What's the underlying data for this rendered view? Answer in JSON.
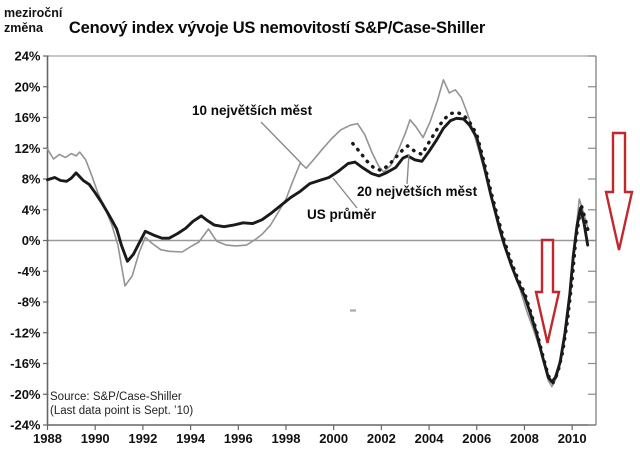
{
  "corner_label": {
    "line1": "meziroční",
    "line2": "změna"
  },
  "source": {
    "line1": "Source: S&P/Case-Shiller",
    "line2": "(Last data point is Sept. ’10)"
  },
  "colors": {
    "series_gray": "#949494",
    "series_black": "#1a1a1a",
    "series_dotted": "#1a1a1a",
    "arrow_red": "#c1272d",
    "axis_dark": "#666666",
    "axis_light": "#a3a3a3",
    "zero_line": "#9a9a9a",
    "leader_gray": "#8a8a8a"
  },
  "chart_data": {
    "type": "line",
    "title": "Cenový index vývoje US nemovitostí S&P/Case-Shiller",
    "ylabel": "meziroční změna",
    "x_axis": {
      "range": [
        1988,
        2011
      ],
      "tick_values": [
        1988,
        1990,
        1992,
        1994,
        1996,
        1998,
        2000,
        2002,
        2004,
        2006,
        2008,
        2010
      ]
    },
    "y_axis": {
      "range": [
        -24,
        24
      ],
      "tick_values": [
        24,
        20,
        16,
        12,
        8,
        4,
        0,
        -4,
        -8,
        -12,
        -16,
        -20,
        -24
      ],
      "tick_labels": [
        "24%",
        "20%",
        "16%",
        "12%",
        "8%",
        "4%",
        "0%",
        "-4%",
        "-8%",
        "-12%",
        "-16%",
        "-20%",
        "-24%"
      ]
    },
    "zero_line": true,
    "grid": false,
    "legend_position": "inline-annotations",
    "series": [
      {
        "name": "10 největších měst",
        "style": "gray",
        "color": "#949494",
        "points": [
          [
            1988.0,
            11.9
          ],
          [
            1988.25,
            10.6
          ],
          [
            1988.5,
            11.2
          ],
          [
            1988.75,
            10.8
          ],
          [
            1989.0,
            11.3
          ],
          [
            1989.2,
            11.0
          ],
          [
            1989.35,
            11.5
          ],
          [
            1989.6,
            10.5
          ],
          [
            1989.85,
            8.5
          ],
          [
            1990.1,
            6.3
          ],
          [
            1990.4,
            4.3
          ],
          [
            1990.7,
            2.0
          ],
          [
            1990.95,
            -0.6
          ],
          [
            1991.25,
            -5.9
          ],
          [
            1991.55,
            -4.6
          ],
          [
            1991.85,
            -1.5
          ],
          [
            1992.1,
            0.4
          ],
          [
            1992.4,
            -0.4
          ],
          [
            1992.75,
            -1.2
          ],
          [
            1993.1,
            -1.4
          ],
          [
            1993.65,
            -1.5
          ],
          [
            1994.0,
            -0.8
          ],
          [
            1994.35,
            -0.2
          ],
          [
            1994.75,
            1.5
          ],
          [
            1995.1,
            -0.1
          ],
          [
            1995.5,
            -0.6
          ],
          [
            1995.9,
            -0.7
          ],
          [
            1996.35,
            -0.6
          ],
          [
            1996.7,
            0.1
          ],
          [
            1997.0,
            0.8
          ],
          [
            1997.35,
            2.0
          ],
          [
            1997.7,
            3.8
          ],
          [
            1998.0,
            5.4
          ],
          [
            1998.3,
            7.8
          ],
          [
            1998.6,
            10.1
          ],
          [
            1998.85,
            9.4
          ],
          [
            1999.1,
            10.3
          ],
          [
            1999.5,
            11.8
          ],
          [
            1999.9,
            13.2
          ],
          [
            2000.3,
            14.4
          ],
          [
            2000.7,
            15.0
          ],
          [
            2001.0,
            15.2
          ],
          [
            2001.3,
            13.8
          ],
          [
            2001.6,
            11.5
          ],
          [
            2001.9,
            9.6
          ],
          [
            2002.1,
            8.9
          ],
          [
            2002.4,
            9.8
          ],
          [
            2002.7,
            11.7
          ],
          [
            2003.0,
            13.9
          ],
          [
            2003.2,
            15.7
          ],
          [
            2003.45,
            14.8
          ],
          [
            2003.75,
            13.4
          ],
          [
            2004.05,
            15.5
          ],
          [
            2004.35,
            18.2
          ],
          [
            2004.6,
            20.9
          ],
          [
            2004.85,
            19.2
          ],
          [
            2005.1,
            19.6
          ],
          [
            2005.35,
            18.6
          ],
          [
            2005.6,
            16.6
          ],
          [
            2005.85,
            14.2
          ],
          [
            2006.1,
            11.6
          ],
          [
            2006.4,
            8.2
          ],
          [
            2006.7,
            4.4
          ],
          [
            2006.95,
            1.2
          ],
          [
            2007.2,
            -1.2
          ],
          [
            2007.5,
            -3.6
          ],
          [
            2007.8,
            -6.2
          ],
          [
            2008.1,
            -9.2
          ],
          [
            2008.4,
            -11.8
          ],
          [
            2008.7,
            -14.6
          ],
          [
            2009.0,
            -18.2
          ],
          [
            2009.15,
            -19.0
          ],
          [
            2009.35,
            -17.8
          ],
          [
            2009.55,
            -15.3
          ],
          [
            2009.75,
            -11.0
          ],
          [
            2009.95,
            -5.5
          ],
          [
            2010.1,
            -0.5
          ],
          [
            2010.3,
            5.4
          ],
          [
            2010.5,
            3.4
          ],
          [
            2010.68,
            1.4
          ]
        ]
      },
      {
        "name": "20 největších měst",
        "style": "dotted",
        "color": "#1a1a1a",
        "points": [
          [
            2000.8,
            12.6
          ],
          [
            2001.1,
            11.5
          ],
          [
            2001.4,
            10.3
          ],
          [
            2001.7,
            9.4
          ],
          [
            2002.0,
            9.1
          ],
          [
            2002.3,
            9.8
          ],
          [
            2002.6,
            10.8
          ],
          [
            2002.9,
            11.8
          ],
          [
            2003.1,
            12.3
          ],
          [
            2003.4,
            11.6
          ],
          [
            2003.7,
            11.2
          ],
          [
            2004.0,
            12.8
          ],
          [
            2004.3,
            14.3
          ],
          [
            2004.6,
            15.7
          ],
          [
            2004.9,
            16.5
          ],
          [
            2005.15,
            16.7
          ],
          [
            2005.45,
            16.3
          ],
          [
            2005.7,
            15.4
          ],
          [
            2006.0,
            13.8
          ],
          [
            2006.3,
            10.3
          ],
          [
            2006.6,
            6.3
          ],
          [
            2006.9,
            2.8
          ],
          [
            2007.15,
            0.0
          ],
          [
            2007.45,
            -2.8
          ],
          [
            2007.7,
            -4.8
          ],
          [
            2008.0,
            -6.8
          ],
          [
            2008.25,
            -9.2
          ],
          [
            2008.5,
            -11.7
          ],
          [
            2008.75,
            -14.7
          ],
          [
            2009.0,
            -17.6
          ],
          [
            2009.2,
            -18.5
          ],
          [
            2009.4,
            -17.2
          ],
          [
            2009.6,
            -14.5
          ],
          [
            2009.8,
            -10.5
          ],
          [
            2010.0,
            -5.0
          ],
          [
            2010.15,
            0.0
          ],
          [
            2010.38,
            4.6
          ],
          [
            2010.55,
            2.8
          ],
          [
            2010.7,
            0.9
          ]
        ]
      },
      {
        "name": "US průměr",
        "style": "black",
        "color": "#1a1a1a",
        "points": [
          [
            1988.0,
            7.9
          ],
          [
            1988.3,
            8.2
          ],
          [
            1988.55,
            7.8
          ],
          [
            1988.8,
            7.7
          ],
          [
            1989.0,
            8.1
          ],
          [
            1989.2,
            8.8
          ],
          [
            1989.5,
            7.8
          ],
          [
            1989.75,
            7.3
          ],
          [
            1990.0,
            6.2
          ],
          [
            1990.3,
            4.8
          ],
          [
            1990.6,
            3.2
          ],
          [
            1990.9,
            1.5
          ],
          [
            1991.1,
            -0.6
          ],
          [
            1991.35,
            -2.7
          ],
          [
            1991.6,
            -1.8
          ],
          [
            1991.85,
            -0.3
          ],
          [
            1992.1,
            1.2
          ],
          [
            1992.45,
            0.7
          ],
          [
            1992.8,
            0.3
          ],
          [
            1993.1,
            0.3
          ],
          [
            1993.45,
            0.9
          ],
          [
            1993.8,
            1.6
          ],
          [
            1994.1,
            2.5
          ],
          [
            1994.45,
            3.2
          ],
          [
            1994.7,
            2.6
          ],
          [
            1995.0,
            2.0
          ],
          [
            1995.4,
            1.8
          ],
          [
            1995.8,
            2.0
          ],
          [
            1996.2,
            2.3
          ],
          [
            1996.6,
            2.2
          ],
          [
            1997.0,
            2.7
          ],
          [
            1997.4,
            3.6
          ],
          [
            1997.8,
            4.6
          ],
          [
            1998.2,
            5.6
          ],
          [
            1998.6,
            6.4
          ],
          [
            1999.0,
            7.4
          ],
          [
            1999.4,
            7.8
          ],
          [
            1999.8,
            8.2
          ],
          [
            2000.2,
            9.0
          ],
          [
            2000.6,
            10.0
          ],
          [
            2000.9,
            10.2
          ],
          [
            2001.2,
            9.5
          ],
          [
            2001.6,
            8.7
          ],
          [
            2001.9,
            8.4
          ],
          [
            2002.2,
            8.8
          ],
          [
            2002.6,
            9.5
          ],
          [
            2002.9,
            10.7
          ],
          [
            2003.1,
            11.0
          ],
          [
            2003.4,
            10.5
          ],
          [
            2003.7,
            10.3
          ],
          [
            2004.0,
            11.6
          ],
          [
            2004.3,
            13.0
          ],
          [
            2004.6,
            14.6
          ],
          [
            2004.9,
            15.6
          ],
          [
            2005.15,
            15.9
          ],
          [
            2005.45,
            15.8
          ],
          [
            2005.7,
            15.0
          ],
          [
            2006.0,
            13.4
          ],
          [
            2006.3,
            9.8
          ],
          [
            2006.6,
            5.8
          ],
          [
            2006.9,
            2.3
          ],
          [
            2007.15,
            -0.5
          ],
          [
            2007.45,
            -3.2
          ],
          [
            2007.7,
            -5.2
          ],
          [
            2008.0,
            -7.2
          ],
          [
            2008.25,
            -9.5
          ],
          [
            2008.5,
            -12.0
          ],
          [
            2008.75,
            -15.0
          ],
          [
            2009.0,
            -17.8
          ],
          [
            2009.15,
            -18.4
          ],
          [
            2009.3,
            -17.8
          ],
          [
            2009.5,
            -15.8
          ],
          [
            2009.7,
            -12.0
          ],
          [
            2009.9,
            -7.0
          ],
          [
            2010.05,
            -2.0
          ],
          [
            2010.2,
            1.8
          ],
          [
            2010.35,
            4.2
          ],
          [
            2010.5,
            2.2
          ],
          [
            2010.65,
            -0.6
          ]
        ]
      }
    ],
    "annotations": [
      {
        "text": "10 největších měst",
        "target_series": "10 největších měst"
      },
      {
        "text": "20 největších měst",
        "target_series": "20 největších měst"
      },
      {
        "text": "US průměr",
        "target_series": "US průměr"
      }
    ],
    "arrows": [
      {
        "meaning": "pokles 2007-2009 (downturn arrow in plot)",
        "direction": "down"
      },
      {
        "meaning": "pokles na konci 2010 (downturn arrow right of plot)",
        "direction": "down"
      }
    ]
  }
}
